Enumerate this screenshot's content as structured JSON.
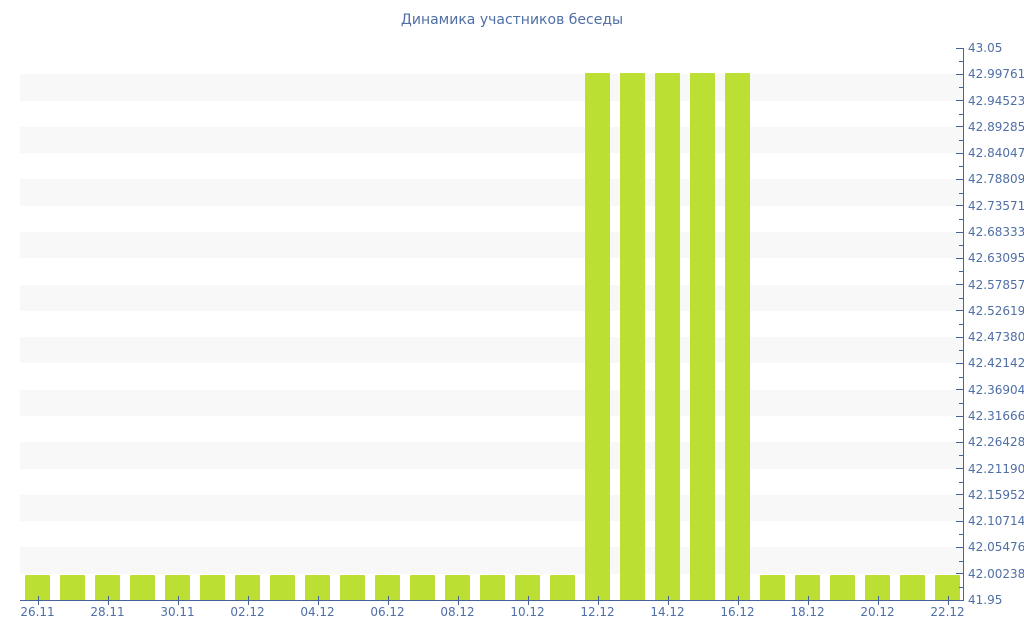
{
  "chart_data": {
    "type": "bar",
    "title": "Динамика участников беседы",
    "xlabel": "",
    "ylabel": "",
    "categories": [
      "26.11",
      "27.11",
      "28.11",
      "29.11",
      "30.11",
      "01.12",
      "02.12",
      "03.12",
      "04.12",
      "05.12",
      "06.12",
      "07.12",
      "08.12",
      "09.12",
      "10.12",
      "11.12",
      "12.12",
      "13.12",
      "14.12",
      "15.12",
      "16.12",
      "17.12",
      "18.12",
      "19.12",
      "20.12",
      "21.12",
      "22.12"
    ],
    "values": [
      42,
      42,
      42,
      42,
      42,
      42,
      42,
      42,
      42,
      42,
      42,
      42,
      42,
      42,
      42,
      42,
      43,
      43,
      43,
      43,
      43,
      42,
      42,
      42,
      42,
      42,
      42
    ],
    "x_tick_labels": [
      "26.11",
      "28.11",
      "30.11",
      "02.12",
      "04.12",
      "06.12",
      "08.12",
      "10.12",
      "12.12",
      "14.12",
      "16.12",
      "18.12",
      "20.12",
      "22.12"
    ],
    "y_tick_labels": [
      "41.95",
      "42.00238",
      "42.05476",
      "42.10714",
      "42.15952",
      "42.21190",
      "42.26428",
      "42.31666",
      "42.36904",
      "42.42142",
      "42.47380",
      "42.52619",
      "42.57857",
      "42.63095",
      "42.68333",
      "42.73571",
      "42.78809",
      "42.84047",
      "42.89285",
      "42.94523",
      "42.99761",
      "43.05"
    ],
    "ylim": [
      41.95,
      43.05
    ],
    "y_axis_position": "right",
    "grid": "alternating-horizontal-bands",
    "legend": "none",
    "colors": {
      "bar": "#bcdf34",
      "band": "#f8f8f8",
      "axis": "#46619c",
      "label": "#4f6fa6",
      "title": "#4f6fa6",
      "background": "#ffffff"
    }
  }
}
